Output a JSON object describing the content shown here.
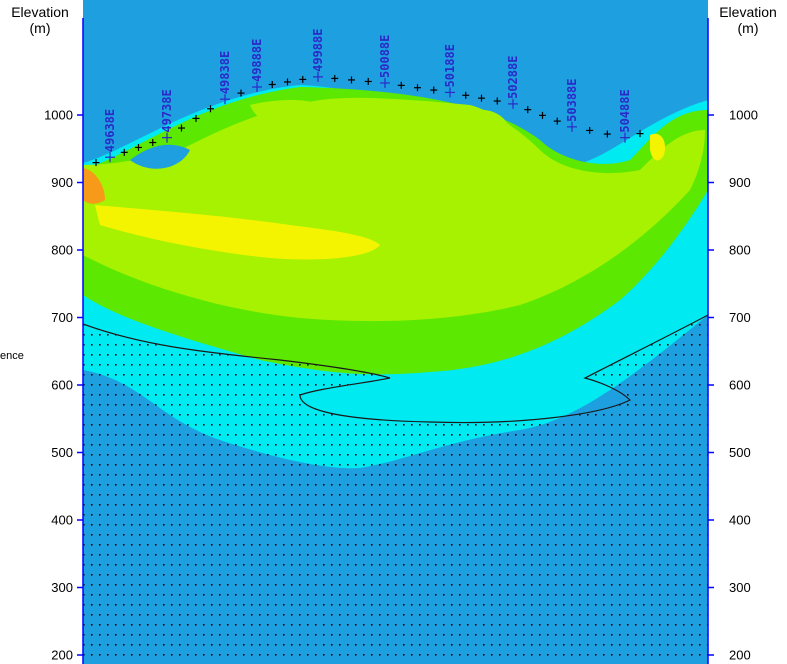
{
  "chart_data": {
    "type": "heatmap",
    "title": "",
    "left_axis": {
      "title_line1": "Elevation",
      "title_line2": "(m)"
    },
    "right_axis": {
      "title_line1": "Elevation",
      "title_line2": "(m)"
    },
    "ylim": [
      200,
      1050
    ],
    "y_ticks": [
      {
        "value": 1000,
        "label": "1000"
      },
      {
        "value": 900,
        "label": "900"
      },
      {
        "value": 800,
        "label": "800"
      },
      {
        "value": 700,
        "label": "700"
      },
      {
        "value": 600,
        "label": "600"
      },
      {
        "value": 500,
        "label": "500"
      },
      {
        "value": 400,
        "label": "400"
      },
      {
        "value": 300,
        "label": "300"
      },
      {
        "value": 200,
        "label": "200"
      }
    ],
    "stations": [
      {
        "label": "49638E",
        "elevation": 933
      },
      {
        "label": "49738E",
        "elevation": 962
      },
      {
        "label": "49838E",
        "elevation": 1019
      },
      {
        "label": "49888E",
        "elevation": 1037
      },
      {
        "label": "49988E",
        "elevation": 1052
      },
      {
        "label": "50088E",
        "elevation": 1043
      },
      {
        "label": "50188E",
        "elevation": 1029
      },
      {
        "label": "50288E",
        "elevation": 1012
      },
      {
        "label": "50388E",
        "elevation": 978
      },
      {
        "label": "50488E",
        "elevation": 962
      }
    ],
    "cut_off_text": "ence",
    "colors": {
      "deep_blue": "#1e9fe0",
      "cyan": "#00eaf2",
      "green": "#5ce800",
      "lime": "#a6f200",
      "yellow": "#f4f400",
      "orange": "#f79a1a",
      "axis": "#0000ff",
      "station_text": "#2a2ac8"
    }
  }
}
